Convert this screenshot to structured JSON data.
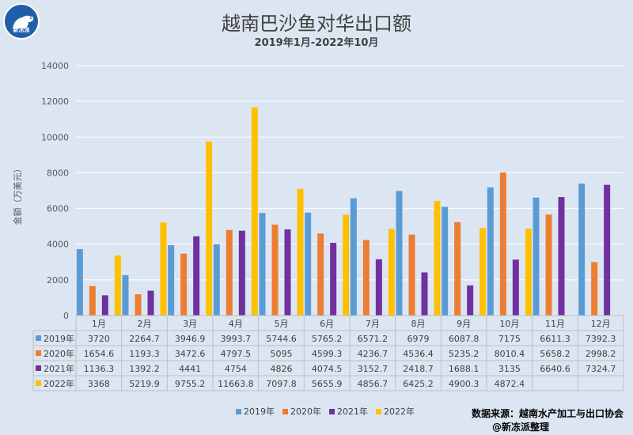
{
  "logo": {
    "text": "新冻派"
  },
  "chart_data": {
    "type": "bar",
    "title": "越南巴沙鱼对华出口额",
    "subtitle": "2019年1月-2022年10月",
    "ylabel": "金额（万美元）",
    "xlabel": "",
    "ylim": [
      0,
      14000
    ],
    "yticks": [
      0,
      2000,
      4000,
      6000,
      8000,
      10000,
      12000,
      14000
    ],
    "grid": true,
    "legend_position": "bottom",
    "categories": [
      "1月",
      "2月",
      "3月",
      "4月",
      "5月",
      "6月",
      "7月",
      "8月",
      "9月",
      "10月",
      "11月",
      "12月"
    ],
    "series": [
      {
        "name": "2019年",
        "color": "#5b9bd5",
        "values": [
          3720,
          2264.7,
          3946.9,
          3993.7,
          5744.6,
          5765.2,
          6571.2,
          6979,
          6087.8,
          7175,
          6611.3,
          7392.3
        ]
      },
      {
        "name": "2020年",
        "color": "#ed7d31",
        "values": [
          1654.6,
          1193.3,
          3472.6,
          4797.5,
          5095,
          4599.3,
          4236.7,
          4536.4,
          5235.2,
          8010.4,
          5658.2,
          2998.2
        ]
      },
      {
        "name": "2021年",
        "color": "#7030a0",
        "values": [
          1136.3,
          1392.2,
          4441,
          4754,
          4826,
          4074.5,
          3152.7,
          2418.7,
          1688.1,
          3135,
          6640.6,
          7324.7
        ]
      },
      {
        "name": "2022年",
        "color": "#ffc000",
        "values": [
          3368,
          5219.9,
          9755.2,
          11663.8,
          7097.8,
          5655.9,
          4856.7,
          6425.2,
          4900.3,
          4872.4,
          null,
          null
        ]
      }
    ]
  },
  "footer": {
    "source": "数据来源：越南水产加工与出口协会",
    "credit": "@新冻派整理"
  }
}
